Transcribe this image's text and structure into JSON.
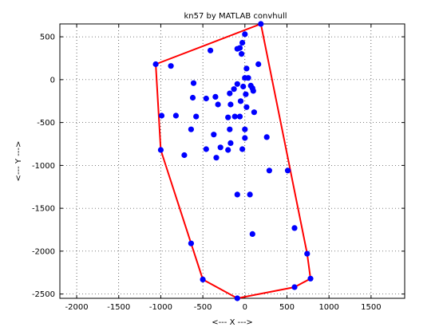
{
  "chart_data": {
    "type": "scatter",
    "title": "kn57 by MATLAB convhull",
    "xlabel": "<--- X --->",
    "ylabel": "<--- Y --->",
    "xlim": [
      -2200,
      1900
    ],
    "ylim": [
      -2550,
      650
    ],
    "xticks": [
      -2000,
      -1500,
      -1000,
      -500,
      0,
      500,
      1000,
      1500
    ],
    "yticks": [
      -2500,
      -2000,
      -1500,
      -1000,
      -500,
      0,
      500
    ],
    "xtick_labels": [
      "-2000",
      "-1500",
      "-1000",
      "-500",
      "0",
      "500",
      "1000",
      "1500"
    ],
    "ytick_labels": [
      "-2500",
      "-2000",
      "-1500",
      "-1000",
      "-500",
      "0",
      "500"
    ],
    "grid": true,
    "grid_style": "dotted",
    "series": [
      {
        "marker": "filled-circle",
        "color": "#0000ff",
        "points": [
          [
            -1060,
            180
          ],
          [
            -880,
            160
          ],
          [
            -410,
            340
          ],
          [
            -90,
            360
          ],
          [
            -60,
            370
          ],
          [
            -40,
            300
          ],
          [
            0,
            530
          ],
          [
            190,
            650
          ],
          [
            160,
            180
          ],
          [
            -30,
            430
          ],
          [
            -610,
            -40
          ],
          [
            -620,
            -210
          ],
          [
            -350,
            -200
          ],
          [
            -460,
            -220
          ],
          [
            -180,
            -160
          ],
          [
            -90,
            -50
          ],
          [
            0,
            20
          ],
          [
            40,
            20
          ],
          [
            20,
            130
          ],
          [
            -20,
            -80
          ],
          [
            -130,
            -110
          ],
          [
            70,
            -70
          ],
          [
            90,
            -100
          ],
          [
            100,
            -130
          ],
          [
            10,
            -170
          ],
          [
            -320,
            -290
          ],
          [
            -170,
            -290
          ],
          [
            -50,
            -250
          ],
          [
            20,
            -320
          ],
          [
            -990,
            -420
          ],
          [
            -820,
            -420
          ],
          [
            -580,
            -430
          ],
          [
            -120,
            -430
          ],
          [
            -60,
            -430
          ],
          [
            -200,
            -440
          ],
          [
            110,
            -380
          ],
          [
            -640,
            -580
          ],
          [
            -180,
            -580
          ],
          [
            0,
            -580
          ],
          [
            -370,
            -640
          ],
          [
            260,
            -670
          ],
          [
            -170,
            -740
          ],
          [
            -290,
            -790
          ],
          [
            -460,
            -810
          ],
          [
            -200,
            -820
          ],
          [
            -30,
            -810
          ],
          [
            -720,
            -880
          ],
          [
            -340,
            -910
          ],
          [
            0,
            -680
          ],
          [
            -1000,
            -820
          ],
          [
            290,
            -1060
          ],
          [
            510,
            -1060
          ],
          [
            -90,
            -1340
          ],
          [
            60,
            -1340
          ],
          [
            90,
            -1800
          ],
          [
            -640,
            -1910
          ],
          [
            590,
            -1730
          ],
          [
            740,
            -2030
          ],
          [
            -500,
            -2330
          ],
          [
            780,
            -2320
          ],
          [
            590,
            -2420
          ],
          [
            -90,
            -2550
          ]
        ]
      }
    ],
    "hull": {
      "color": "#ff0000",
      "points": [
        [
          -1060,
          180
        ],
        [
          190,
          650
        ],
        [
          740,
          -2030
        ],
        [
          780,
          -2320
        ],
        [
          590,
          -2420
        ],
        [
          -90,
          -2550
        ],
        [
          -500,
          -2330
        ],
        [
          -640,
          -1910
        ],
        [
          -1000,
          -820
        ],
        [
          -1060,
          180
        ]
      ]
    }
  }
}
